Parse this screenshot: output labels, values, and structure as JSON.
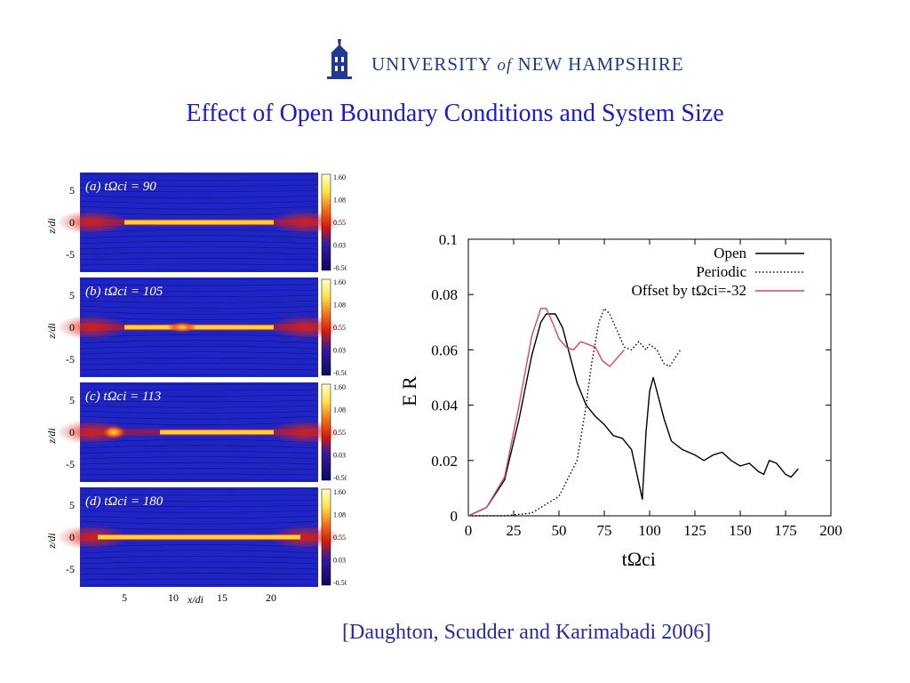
{
  "header": {
    "logo_text_a": "UNIVERSITY ",
    "logo_text_of": "of",
    "logo_text_b": " NEW HAMPSHIRE",
    "title": "Effect of Open Boundary Conditions and System Size"
  },
  "left_figure": {
    "panels": [
      {
        "label": "(a)  tΩci = 90"
      },
      {
        "label": "(b)  tΩci = 105"
      },
      {
        "label": "(c)  tΩci = 113"
      },
      {
        "label": "(d)  tΩci = 180"
      }
    ],
    "y_axis_label": "z/di",
    "y_ticks": [
      "5",
      "0",
      "-5"
    ],
    "colorbar_ticks": [
      "1.60",
      "1.08",
      "0.55",
      "0.03",
      "-0.50"
    ],
    "x_ticks": [
      "5",
      "10",
      "15",
      "20"
    ],
    "x_axis_label": "x/di",
    "colors": {
      "background": "#1f24c8",
      "current": "#ffd23a",
      "mid": "#e02a1a"
    }
  },
  "chart_data": {
    "type": "line",
    "xlabel": "tΩci",
    "ylabel": "E R",
    "xlim": [
      0,
      200
    ],
    "ylim": [
      0,
      0.1
    ],
    "x_ticks": [
      "0",
      "25",
      "50",
      "75",
      "100",
      "125",
      "150",
      "175",
      "200"
    ],
    "y_ticks": [
      "0",
      "0.02",
      "0.04",
      "0.06",
      "0.08",
      "0.1"
    ],
    "legend_position": "top-right",
    "series": [
      {
        "name": "Open",
        "style": "solid",
        "color": "#000000",
        "points": [
          [
            0,
            0
          ],
          [
            10,
            0.003
          ],
          [
            20,
            0.013
          ],
          [
            28,
            0.035
          ],
          [
            35,
            0.058
          ],
          [
            40,
            0.07
          ],
          [
            43,
            0.073
          ],
          [
            48,
            0.073
          ],
          [
            52,
            0.068
          ],
          [
            56,
            0.058
          ],
          [
            60,
            0.048
          ],
          [
            65,
            0.04
          ],
          [
            70,
            0.036
          ],
          [
            75,
            0.033
          ],
          [
            80,
            0.029
          ],
          [
            85,
            0.028
          ],
          [
            90,
            0.024
          ],
          [
            94,
            0.012
          ],
          [
            96,
            0.006
          ],
          [
            98,
            0.03
          ],
          [
            100,
            0.045
          ],
          [
            102,
            0.05
          ],
          [
            104,
            0.045
          ],
          [
            108,
            0.035
          ],
          [
            112,
            0.027
          ],
          [
            118,
            0.024
          ],
          [
            125,
            0.022
          ],
          [
            130,
            0.02
          ],
          [
            135,
            0.022
          ],
          [
            140,
            0.023
          ],
          [
            145,
            0.02
          ],
          [
            150,
            0.018
          ],
          [
            155,
            0.019
          ],
          [
            160,
            0.016
          ],
          [
            163,
            0.015
          ],
          [
            166,
            0.02
          ],
          [
            170,
            0.019
          ],
          [
            175,
            0.015
          ],
          [
            178,
            0.014
          ],
          [
            182,
            0.017
          ]
        ]
      },
      {
        "name": "Periodic",
        "style": "dotted",
        "color": "#000000",
        "points": [
          [
            0,
            0
          ],
          [
            20,
            0
          ],
          [
            35,
            0.001
          ],
          [
            50,
            0.007
          ],
          [
            60,
            0.02
          ],
          [
            65,
            0.04
          ],
          [
            68,
            0.055
          ],
          [
            72,
            0.07
          ],
          [
            75,
            0.075
          ],
          [
            78,
            0.073
          ],
          [
            82,
            0.067
          ],
          [
            86,
            0.061
          ],
          [
            90,
            0.06
          ],
          [
            94,
            0.063
          ],
          [
            98,
            0.06
          ],
          [
            100,
            0.062
          ],
          [
            104,
            0.06
          ],
          [
            108,
            0.055
          ],
          [
            111,
            0.054
          ],
          [
            114,
            0.057
          ],
          [
            117,
            0.06
          ]
        ]
      },
      {
        "name": "Offset by tΩci=-32",
        "style": "solid",
        "color": "#e0406a",
        "points": [
          [
            0,
            0
          ],
          [
            10,
            0.003
          ],
          [
            20,
            0.014
          ],
          [
            28,
            0.04
          ],
          [
            35,
            0.065
          ],
          [
            40,
            0.075
          ],
          [
            43,
            0.075
          ],
          [
            47,
            0.069
          ],
          [
            50,
            0.064
          ],
          [
            54,
            0.061
          ],
          [
            58,
            0.06
          ],
          [
            62,
            0.063
          ],
          [
            66,
            0.062
          ],
          [
            70,
            0.061
          ],
          [
            74,
            0.056
          ],
          [
            78,
            0.054
          ],
          [
            82,
            0.057
          ],
          [
            86,
            0.06
          ]
        ]
      }
    ]
  },
  "citation": "[Daughton, Scudder and Karimabadi 2006]"
}
